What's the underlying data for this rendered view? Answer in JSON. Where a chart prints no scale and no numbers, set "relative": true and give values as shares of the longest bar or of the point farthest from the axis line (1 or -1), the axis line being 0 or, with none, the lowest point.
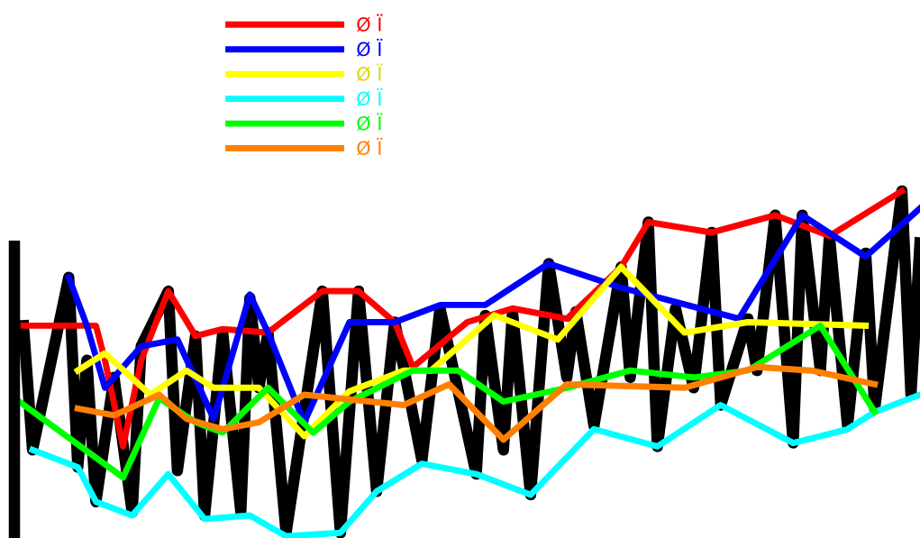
{
  "chart_data": {
    "type": "line",
    "relative": true,
    "legend": "top left",
    "marker": "none",
    "line_style": "solid",
    "categories": [
      null,
      null,
      null,
      null,
      null,
      null,
      null,
      null,
      null,
      null,
      null,
      null,
      null,
      null,
      null,
      null,
      null,
      null,
      null,
      null,
      null,
      null,
      null,
      null,
      null,
      null,
      null,
      null,
      null,
      null,
      null,
      null,
      null,
      null,
      null,
      null,
      null,
      null,
      null,
      null,
      null,
      null,
      null,
      null,
      null,
      null,
      null,
      null,
      null,
      null,
      null,
      null,
      null,
      null,
      null,
      null,
      null,
      null,
      null,
      null,
      null,
      null,
      null,
      null,
      null,
      null,
      null,
      null,
      null,
      null,
      null,
      null,
      null,
      null,
      null,
      null,
      null,
      null,
      null,
      null,
      null,
      null,
      null,
      null,
      null,
      null,
      null,
      null,
      null,
      null,
      null,
      null,
      null,
      null,
      null,
      null,
      null,
      null,
      null,
      null,
      null
    ],
    "series": [
      {
        "color": "#000000",
        "values": [
          null,
          0.61,
          0.25,
          null,
          null,
          null,
          0.75,
          0.2,
          0.51,
          0.1,
          null,
          0.46,
          null,
          0.07,
          0.55,
          null,
          null,
          0.71,
          0.19,
          null,
          0.58,
          0.06,
          null,
          0.59,
          null,
          0.07,
          0.69,
          0.43,
          0.59,
          null,
          0.01,
          null,
          null,
          null,
          0.71,
          null,
          0.01,
          null,
          0.71,
          null,
          0.13,
          null,
          0.62,
          null,
          null,
          0.22,
          null,
          0.66,
          null,
          null,
          null,
          0.18,
          0.64,
          null,
          0.25,
          0.65,
          null,
          0.12,
          null,
          0.79,
          null,
          0.46,
          0.65,
          null,
          0.32,
          null,
          null,
          0.78,
          0.46,
          null,
          0.91,
          0.26,
          null,
          0.66,
          null,
          0.43,
          null,
          0.88,
          0.38,
          null,
          null,
          0.63,
          0.48,
          null,
          0.93,
          null,
          0.27,
          0.93,
          null,
          0.48,
          0.87,
          null,
          0.32,
          null,
          0.82,
          0.37,
          null,
          null,
          1.0,
          0.41,
          0.85
        ]
      },
      {
        "name": "Ø Ï",
        "color": "#ff0000",
        "values": [
          null,
          0.61,
          null,
          null,
          null,
          null,
          null,
          null,
          null,
          0.61,
          0.51,
          null,
          0.26,
          null,
          0.51,
          null,
          null,
          0.71,
          null,
          null,
          0.58,
          null,
          null,
          0.6,
          null,
          null,
          null,
          null,
          0.59,
          null,
          null,
          null,
          null,
          null,
          0.71,
          null,
          null,
          null,
          0.71,
          null,
          null,
          null,
          0.62,
          null,
          0.49,
          null,
          null,
          null,
          null,
          null,
          0.62,
          null,
          null,
          null,
          null,
          0.66,
          null,
          null,
          null,
          null,
          null,
          0.63,
          null,
          null,
          null,
          null,
          null,
          0.78,
          null,
          null,
          0.91,
          null,
          null,
          null,
          null,
          null,
          null,
          0.88,
          null,
          null,
          null,
          null,
          null,
          null,
          0.93,
          null,
          null,
          null,
          null,
          null,
          0.87,
          null,
          null,
          null,
          null,
          null,
          null,
          null,
          1.0,
          null,
          null
        ]
      },
      {
        "name": "Ø Ï",
        "color": "#0000ff",
        "values": [
          null,
          null,
          null,
          null,
          null,
          null,
          0.75,
          null,
          0.61,
          null,
          0.43,
          null,
          null,
          null,
          0.55,
          null,
          null,
          null,
          0.57,
          null,
          null,
          null,
          0.34,
          null,
          null,
          null,
          0.7,
          null,
          0.59,
          null,
          null,
          null,
          0.33,
          null,
          null,
          null,
          null,
          0.62,
          null,
          null,
          null,
          null,
          0.62,
          null,
          null,
          null,
          null,
          0.67,
          null,
          null,
          null,
          null,
          0.67,
          null,
          null,
          null,
          null,
          null,
          null,
          0.79,
          null,
          null,
          null,
          null,
          null,
          null,
          null,
          0.72,
          null,
          null,
          null,
          null,
          null,
          null,
          null,
          null,
          null,
          null,
          null,
          null,
          0.63,
          null,
          null,
          null,
          null,
          null,
          null,
          0.93,
          null,
          null,
          null,
          null,
          null,
          null,
          0.81,
          null,
          null,
          null,
          null,
          null,
          0.95
        ]
      },
      {
        "name": "Ø Ï",
        "color": "#ffff00",
        "values": [
          null,
          null,
          null,
          null,
          null,
          null,
          null,
          0.48,
          null,
          null,
          0.53,
          null,
          null,
          null,
          null,
          0.41,
          null,
          null,
          null,
          0.48,
          null,
          null,
          0.43,
          null,
          null,
          null,
          null,
          0.43,
          null,
          null,
          null,
          null,
          0.29,
          null,
          null,
          null,
          null,
          0.42,
          null,
          null,
          null,
          null,
          null,
          0.48,
          null,
          null,
          0.48,
          null,
          null,
          null,
          null,
          null,
          null,
          0.64,
          null,
          null,
          null,
          null,
          null,
          null,
          0.57,
          null,
          null,
          null,
          null,
          null,
          null,
          0.78,
          null,
          null,
          null,
          null,
          null,
          null,
          0.59,
          null,
          null,
          null,
          null,
          null,
          null,
          0.62,
          null,
          null,
          null,
          null,
          null,
          null,
          null,
          null,
          null,
          null,
          null,
          null,
          0.61,
          null,
          null,
          null,
          null,
          null,
          null
        ]
      },
      {
        "name": "Ø Ï",
        "color": "#00ffff",
        "values": [
          null,
          null,
          0.25,
          null,
          null,
          null,
          null,
          0.2,
          null,
          0.1,
          null,
          null,
          null,
          0.06,
          null,
          null,
          null,
          0.18,
          null,
          null,
          null,
          0.05,
          null,
          null,
          null,
          null,
          0.06,
          null,
          null,
          null,
          0.0,
          null,
          null,
          null,
          null,
          null,
          0.01,
          null,
          null,
          null,
          0.13,
          null,
          null,
          null,
          null,
          0.21,
          null,
          null,
          null,
          null,
          null,
          0.18,
          null,
          null,
          null,
          null,
          null,
          0.12,
          null,
          null,
          null,
          null,
          null,
          null,
          0.31,
          null,
          null,
          null,
          null,
          null,
          null,
          0.26,
          null,
          null,
          null,
          null,
          null,
          null,
          0.38,
          null,
          null,
          null,
          null,
          null,
          null,
          null,
          0.27,
          null,
          null,
          null,
          null,
          null,
          0.31,
          null,
          null,
          0.36,
          null,
          null,
          null,
          null,
          0.41
        ]
      },
      {
        "name": "Ø Ï",
        "color": "#00ff00",
        "values": [
          0.4,
          null,
          null,
          null,
          null,
          null,
          null,
          null,
          null,
          null,
          null,
          null,
          0.17,
          null,
          null,
          null,
          0.4,
          null,
          null,
          null,
          0.33,
          null,
          null,
          0.3,
          null,
          null,
          null,
          null,
          0.43,
          null,
          null,
          null,
          null,
          0.3,
          null,
          null,
          null,
          0.39,
          null,
          null,
          null,
          null,
          null,
          null,
          0.48,
          null,
          null,
          null,
          null,
          0.48,
          null,
          null,
          null,
          null,
          0.39,
          null,
          null,
          null,
          null,
          null,
          null,
          0.43,
          null,
          null,
          null,
          null,
          null,
          null,
          0.48,
          null,
          null,
          null,
          null,
          null,
          null,
          0.46,
          null,
          null,
          null,
          null,
          null,
          0.48,
          null,
          null,
          null,
          null,
          null,
          null,
          null,
          0.61,
          null,
          null,
          null,
          null,
          null,
          0.36,
          null,
          null,
          null,
          null,
          null
        ]
      },
      {
        "name": "Ø Ï",
        "color": "#ff8000",
        "values": [
          null,
          null,
          null,
          null,
          null,
          null,
          null,
          0.37,
          null,
          null,
          null,
          0.35,
          null,
          null,
          null,
          null,
          0.41,
          null,
          null,
          0.34,
          null,
          null,
          null,
          0.31,
          null,
          null,
          null,
          0.33,
          null,
          null,
          null,
          null,
          0.41,
          null,
          null,
          null,
          null,
          null,
          null,
          null,
          null,
          null,
          null,
          0.38,
          null,
          null,
          null,
          null,
          0.44,
          null,
          null,
          null,
          null,
          null,
          0.28,
          null,
          null,
          null,
          null,
          null,
          null,
          0.44,
          null,
          null,
          null,
          null,
          null,
          null,
          null,
          null,
          null,
          null,
          null,
          null,
          0.43,
          null,
          null,
          null,
          null,
          null,
          null,
          null,
          0.49,
          null,
          null,
          null,
          null,
          null,
          0.48,
          null,
          null,
          null,
          null,
          null,
          null,
          0.44,
          null,
          null,
          null,
          null,
          null
        ]
      }
    ]
  }
}
